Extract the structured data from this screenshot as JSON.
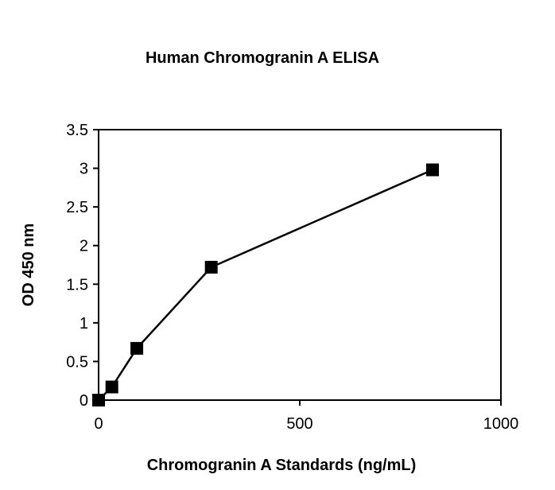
{
  "chart_data": {
    "type": "line",
    "title": "Human Chromogranin A ELISA",
    "xlabel": "Chromogranin A Standards (ng/mL)",
    "ylabel": "OD 450 nm",
    "xlim": [
      0,
      1000
    ],
    "ylim": [
      0,
      3.5
    ],
    "x_ticks": [
      "0",
      "500",
      "1000"
    ],
    "y_ticks": [
      "0",
      "0.5",
      "1",
      "1.5",
      "2",
      "2.5",
      "3",
      "3.5"
    ],
    "grid": false,
    "legend": "none",
    "marker": "square",
    "series": [
      {
        "color": "#000000",
        "points": [
          {
            "x": 0,
            "y": 0.0
          },
          {
            "x": 33,
            "y": 0.17
          },
          {
            "x": 95,
            "y": 0.67
          },
          {
            "x": 280,
            "y": 1.72
          },
          {
            "x": 830,
            "y": 2.98
          }
        ]
      }
    ]
  }
}
